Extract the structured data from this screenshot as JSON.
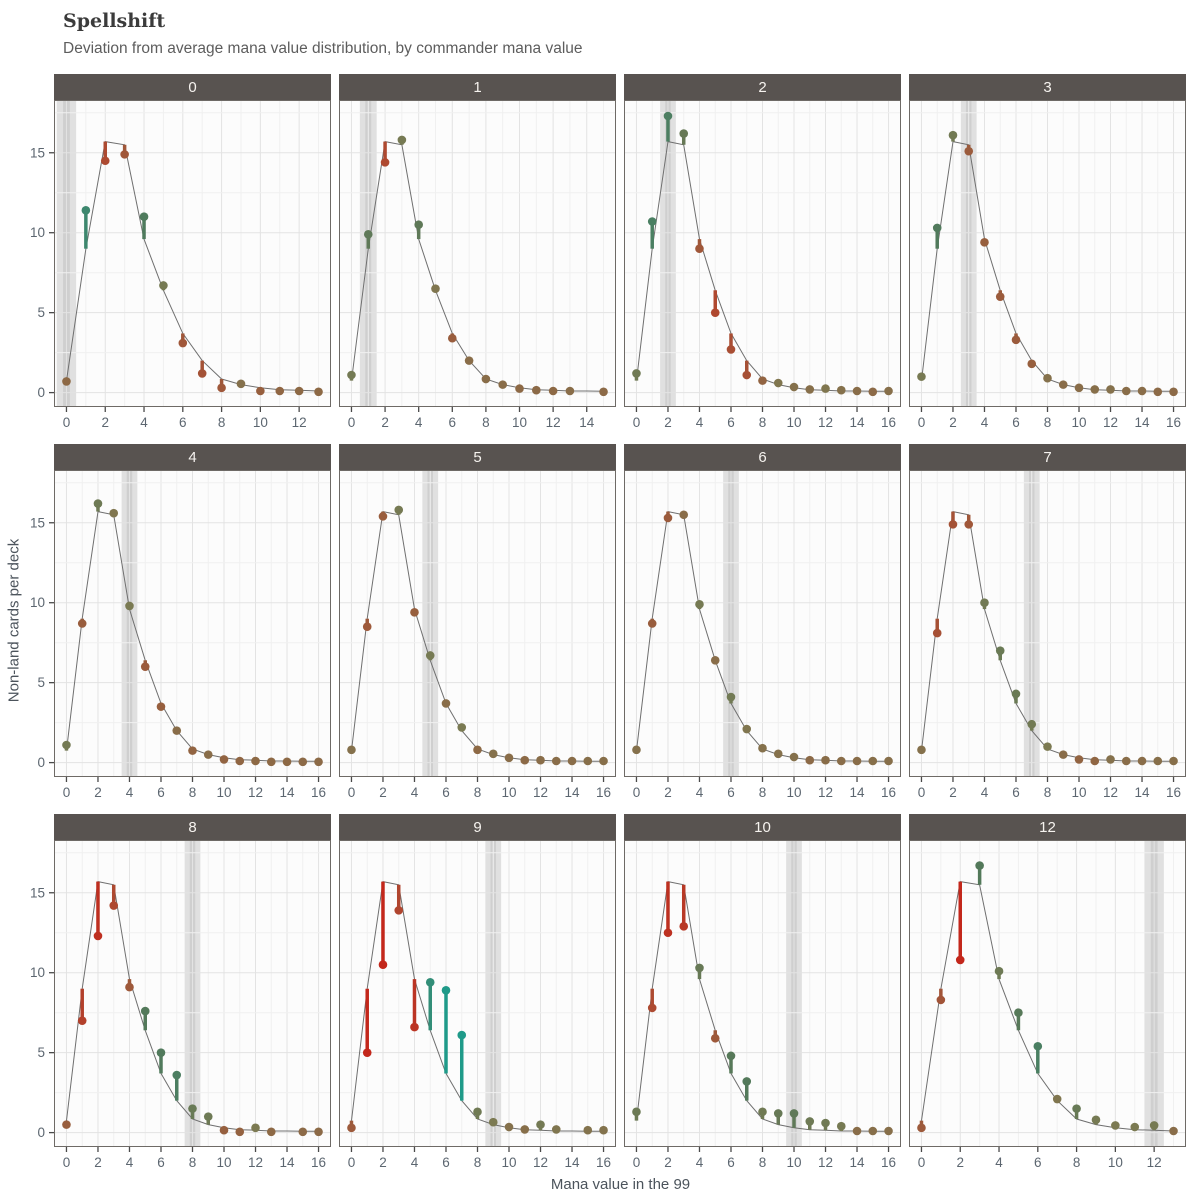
{
  "header": {
    "title": "Spellshift",
    "subtitle": "Deviation from average mana value distribution, by commander mana value"
  },
  "axes": {
    "x_title": "Mana value in the 99",
    "y_title": "Non-land cards per deck",
    "y_ticks": [
      0,
      5,
      10,
      15
    ]
  },
  "colors": {
    "strip_bg": "#585350",
    "strip_text": "#f6f3ef",
    "panel_bg": "#fcfcfc",
    "panel_border": "#6e6a66",
    "grid_major": "#e3e3e3",
    "grid_minor": "#f0f0f0",
    "band": "#e0e0e0",
    "band_core": "#cfcfcf",
    "avg_line": "#6f6f6f",
    "axis_text": "#5c6670",
    "tick_mark": "#4a4a4a",
    "diverging_stops": [
      [
        -4.0,
        "#c3271b"
      ],
      [
        -1.2,
        "#ad4a31"
      ],
      [
        -0.15,
        "#96603f"
      ],
      [
        0.15,
        "#7c7a52"
      ],
      [
        1.2,
        "#53795a"
      ],
      [
        4.0,
        "#1f9a89"
      ]
    ]
  },
  "chart_data": {
    "type": "line",
    "title": "Spellshift",
    "subtitle": "Deviation from average mana value distribution, by commander mana value",
    "xlabel": "Mana value in the 99",
    "ylabel": "Non-land cards per deck",
    "ylim": [
      -0.9,
      18.3
    ],
    "y_ticks": [
      0,
      5,
      10,
      15
    ],
    "grid": true,
    "legend": false,
    "description": "Each facet = commander mana value. Gray band marks the commander mana value. Gray line = average distribution; lollipop points = that group's distribution; segment color = deviation (red below average, teal/green above).",
    "average": [
      0.75,
      9.0,
      15.7,
      15.5,
      9.6,
      6.4,
      3.7,
      2.0,
      0.85,
      0.5,
      0.3,
      0.18,
      0.15,
      0.1,
      0.1,
      0.08,
      0.08
    ],
    "panels": [
      {
        "label": "0",
        "commander_mv": 0,
        "x_max": 13,
        "values": [
          0.7,
          11.4,
          14.5,
          14.9,
          11.0,
          6.7,
          3.1,
          1.2,
          0.3,
          0.55,
          0.1,
          0.1,
          0.1,
          0.05
        ]
      },
      {
        "label": "1",
        "commander_mv": 1,
        "x_max": 15,
        "values": [
          1.1,
          9.9,
          14.4,
          15.8,
          10.5,
          6.5,
          3.4,
          2.0,
          0.85,
          0.5,
          0.25,
          0.15,
          0.1,
          0.1,
          null,
          0.05
        ]
      },
      {
        "label": "2",
        "commander_mv": 2,
        "x_max": 16,
        "values": [
          1.2,
          10.7,
          17.3,
          16.2,
          9.0,
          5.0,
          2.7,
          1.1,
          0.75,
          0.6,
          0.35,
          0.2,
          0.25,
          0.15,
          0.1,
          0.05,
          0.1
        ]
      },
      {
        "label": "3",
        "commander_mv": 3,
        "x_max": 16,
        "values": [
          1.0,
          10.3,
          16.1,
          15.1,
          9.4,
          6.0,
          3.3,
          1.8,
          0.9,
          0.5,
          0.3,
          0.2,
          0.2,
          0.1,
          0.1,
          0.05,
          0.05
        ]
      },
      {
        "label": "4",
        "commander_mv": 4,
        "x_max": 16,
        "values": [
          1.1,
          8.7,
          16.2,
          15.6,
          9.8,
          6.0,
          3.5,
          2.0,
          0.75,
          0.5,
          0.2,
          0.1,
          0.1,
          0.05,
          0.05,
          0.05,
          0.05
        ]
      },
      {
        "label": "5",
        "commander_mv": 5,
        "x_max": 16,
        "values": [
          0.8,
          8.5,
          15.4,
          15.8,
          9.4,
          6.7,
          3.7,
          2.2,
          0.8,
          0.55,
          0.3,
          0.15,
          0.15,
          0.1,
          0.1,
          0.1,
          0.1
        ]
      },
      {
        "label": "6",
        "commander_mv": 6,
        "x_max": 16,
        "values": [
          0.8,
          8.7,
          15.3,
          15.5,
          9.9,
          6.4,
          4.1,
          2.1,
          0.9,
          0.55,
          0.35,
          0.15,
          0.15,
          0.1,
          0.1,
          0.1,
          0.1
        ]
      },
      {
        "label": "7",
        "commander_mv": 7,
        "x_max": 16,
        "values": [
          0.8,
          8.1,
          14.9,
          14.9,
          10.0,
          7.0,
          4.3,
          2.4,
          1.0,
          0.5,
          0.2,
          0.1,
          0.2,
          0.1,
          0.1,
          0.1,
          0.1
        ]
      },
      {
        "label": "8",
        "commander_mv": 8,
        "x_max": 16,
        "values": [
          0.5,
          7.0,
          12.3,
          14.2,
          9.1,
          7.6,
          5.0,
          3.6,
          1.5,
          1.0,
          0.15,
          0.05,
          0.3,
          0.05,
          null,
          0.05,
          0.05
        ]
      },
      {
        "label": "9",
        "commander_mv": 9,
        "x_max": 16,
        "values": [
          0.3,
          5.0,
          10.5,
          13.9,
          6.6,
          9.4,
          8.9,
          6.1,
          1.3,
          0.65,
          0.35,
          0.2,
          0.5,
          0.2,
          null,
          0.15,
          0.15
        ]
      },
      {
        "label": "10",
        "commander_mv": 10,
        "x_max": 16,
        "values": [
          1.3,
          7.8,
          12.5,
          12.9,
          10.3,
          5.9,
          4.8,
          3.2,
          1.3,
          1.2,
          1.2,
          0.7,
          0.6,
          0.4,
          0.1,
          0.1,
          0.1
        ]
      },
      {
        "label": "12",
        "commander_mv": 12,
        "x_max": 13,
        "values": [
          0.3,
          8.3,
          10.8,
          16.7,
          10.1,
          7.5,
          5.4,
          2.1,
          1.5,
          0.8,
          0.45,
          0.35,
          0.45,
          0.1
        ]
      }
    ]
  }
}
